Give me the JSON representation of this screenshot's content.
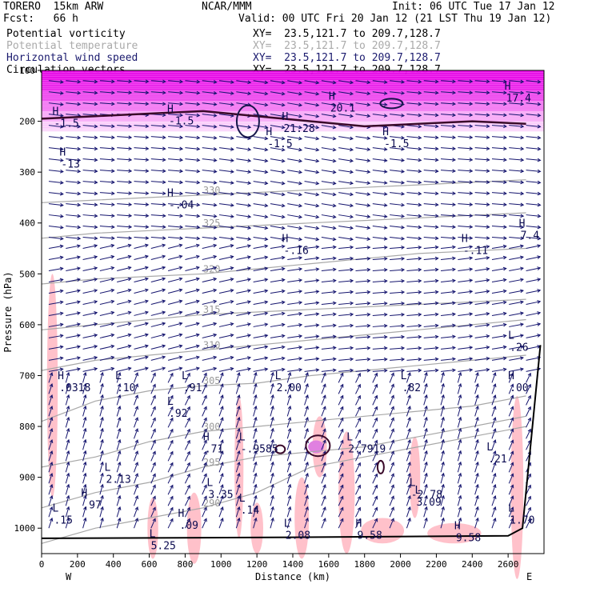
{
  "header": {
    "model": "TORERO  15km ARW",
    "center": "NCAR/MMM",
    "init": "Init: 06 UTC Tue 17 Jan 12",
    "fcst": "Fcst:   66 h",
    "valid": "Valid: 00 UTC Fri 20 Jan 12 (21 LST Thu 19 Jan 12)",
    "fields": [
      {
        "name": "Potential vorticity",
        "xy": "XY=  23.5,121.7 to 209.7,128.7"
      },
      {
        "name": "Potential temperature",
        "xy": "XY=  23.5,121.7 to 209.7,128.7"
      },
      {
        "name": "Horizontal wind speed",
        "xy": "XY=  23.5,121.7 to 209.7,128.7"
      },
      {
        "name": "Circulation vectors",
        "xy": "XY=  23.5,121.7 to 209.7,128.7"
      }
    ]
  },
  "colors": {
    "pv_fill": "#ffb6c1",
    "pv_contour": "#3a0a2a",
    "theta": "#a8a8a8",
    "wind_fill": "#e600e6",
    "vectors": "#14146e"
  },
  "chart_data": {
    "type": "cross-section",
    "xlabel": "Distance (km)",
    "ylabel": "Pressure (hPa)",
    "xlim": [
      0,
      2800
    ],
    "ylim": [
      1050,
      100
    ],
    "x_ticks": [
      0,
      200,
      400,
      600,
      800,
      1000,
      1200,
      1400,
      1600,
      1800,
      2000,
      2200,
      2400,
      2600
    ],
    "y_ticks": [
      100,
      200,
      300,
      400,
      500,
      600,
      700,
      800,
      900,
      1000
    ],
    "left_end": "W",
    "right_end": "E",
    "theta_contours": [
      {
        "label": "290",
        "points": [
          [
            0,
            1030
          ],
          [
            300,
            1000
          ],
          [
            600,
            980
          ],
          [
            900,
            960
          ],
          [
            1200,
            930
          ],
          [
            1500,
            880
          ],
          [
            1800,
            860
          ],
          [
            2100,
            840
          ],
          [
            2400,
            820
          ],
          [
            2700,
            800
          ]
        ]
      },
      {
        "label": "295",
        "points": [
          [
            0,
            960
          ],
          [
            300,
            930
          ],
          [
            600,
            910
          ],
          [
            900,
            880
          ],
          [
            1200,
            860
          ],
          [
            1500,
            850
          ],
          [
            1800,
            840
          ],
          [
            2100,
            820
          ],
          [
            2400,
            800
          ],
          [
            2700,
            780
          ]
        ]
      },
      {
        "label": "300",
        "points": [
          [
            0,
            880
          ],
          [
            300,
            860
          ],
          [
            600,
            830
          ],
          [
            900,
            810
          ],
          [
            1200,
            800
          ],
          [
            1500,
            790
          ],
          [
            1800,
            780
          ],
          [
            2100,
            770
          ],
          [
            2400,
            760
          ],
          [
            2700,
            740
          ]
        ]
      },
      {
        "label": "305",
        "points": [
          [
            0,
            790
          ],
          [
            300,
            750
          ],
          [
            600,
            730
          ],
          [
            900,
            720
          ],
          [
            1200,
            715
          ],
          [
            1500,
            700
          ],
          [
            1800,
            690
          ],
          [
            2100,
            680
          ],
          [
            2400,
            670
          ],
          [
            2700,
            660
          ]
        ]
      },
      {
        "label": "310",
        "points": [
          [
            0,
            690
          ],
          [
            300,
            670
          ],
          [
            600,
            660
          ],
          [
            900,
            650
          ],
          [
            1200,
            640
          ],
          [
            1500,
            630
          ],
          [
            1800,
            620
          ],
          [
            2100,
            610
          ],
          [
            2400,
            600
          ],
          [
            2700,
            590
          ]
        ]
      },
      {
        "label": "315",
        "points": [
          [
            0,
            610
          ],
          [
            300,
            600
          ],
          [
            600,
            590
          ],
          [
            900,
            580
          ],
          [
            1200,
            575
          ],
          [
            1500,
            570
          ],
          [
            1800,
            565
          ],
          [
            2100,
            560
          ],
          [
            2400,
            555
          ],
          [
            2700,
            550
          ]
        ]
      },
      {
        "label": "320",
        "points": [
          [
            0,
            520
          ],
          [
            300,
            510
          ],
          [
            600,
            505
          ],
          [
            900,
            500
          ],
          [
            1200,
            490
          ],
          [
            1500,
            480
          ],
          [
            1800,
            470
          ],
          [
            2100,
            460
          ],
          [
            2400,
            455
          ],
          [
            2700,
            450
          ]
        ]
      },
      {
        "label": "325",
        "points": [
          [
            0,
            430
          ],
          [
            300,
            420
          ],
          [
            600,
            415
          ],
          [
            900,
            410
          ],
          [
            1200,
            405
          ],
          [
            1500,
            400
          ],
          [
            1800,
            395
          ],
          [
            2100,
            390
          ],
          [
            2400,
            385
          ],
          [
            2700,
            380
          ]
        ]
      },
      {
        "label": "330",
        "points": [
          [
            0,
            360
          ],
          [
            300,
            355
          ],
          [
            600,
            350
          ],
          [
            900,
            345
          ],
          [
            1200,
            340
          ],
          [
            1500,
            335
          ],
          [
            1800,
            330
          ],
          [
            2100,
            325
          ],
          [
            2400,
            320
          ],
          [
            2700,
            315
          ]
        ]
      }
    ],
    "pv_contour_2pvu": [
      [
        0,
        195
      ],
      [
        300,
        190
      ],
      [
        600,
        185
      ],
      [
        900,
        180
      ],
      [
        1200,
        190
      ],
      [
        1500,
        200
      ],
      [
        1800,
        210
      ],
      [
        2100,
        205
      ],
      [
        2400,
        200
      ],
      [
        2700,
        205
      ]
    ],
    "extrema_labels": [
      {
        "type": "H",
        "value": "-1.5",
        "x": 60,
        "y": 200
      },
      {
        "type": "H",
        "value": "-1.5",
        "x": 700,
        "y": 195
      },
      {
        "type": "H",
        "value": "-1.5",
        "x": 1250,
        "y": 240
      },
      {
        "type": "H",
        "value": "-1.5",
        "x": 1900,
        "y": 240
      },
      {
        "type": "H",
        "value": "-13",
        "x": 100,
        "y": 280
      },
      {
        "type": "H",
        "value": "-.04",
        "x": 700,
        "y": 360
      },
      {
        "type": "H",
        "value": "-.16",
        "x": 1340,
        "y": 450
      },
      {
        "type": "H",
        "value": "-.11",
        "x": 2340,
        "y": 450
      },
      {
        "type": "H",
        "value": "7.4",
        "x": 2660,
        "y": 420
      },
      {
        "type": "H",
        "value": "20.1",
        "x": 1600,
        "y": 170
      },
      {
        "type": "H",
        "value": "17.4",
        "x": 2580,
        "y": 150
      },
      {
        "type": "H",
        "value": "21.28",
        "x": 1340,
        "y": 210
      },
      {
        "type": "L",
        "value": ".26",
        "x": 2600,
        "y": 640
      },
      {
        "type": "H",
        "value": ".0318",
        "x": 90,
        "y": 720
      },
      {
        "type": "L",
        "value": ".10",
        "x": 410,
        "y": 720
      },
      {
        "type": "L",
        "value": ".91",
        "x": 780,
        "y": 720
      },
      {
        "type": "L",
        "value": "2.00",
        "x": 1300,
        "y": 720
      },
      {
        "type": "L",
        "value": ".82",
        "x": 2000,
        "y": 720
      },
      {
        "type": "H",
        "value": ".00",
        "x": 2600,
        "y": 720
      },
      {
        "type": "L",
        "value": ".92",
        "x": 700,
        "y": 770
      },
      {
        "type": "H",
        "value": ".71",
        "x": 900,
        "y": 840
      },
      {
        "type": "L",
        "value": "-.9585",
        "x": 1100,
        "y": 840
      },
      {
        "type": "L",
        "value": "2.7919",
        "x": 1700,
        "y": 840
      },
      {
        "type": "L",
        "value": ".21",
        "x": 2480,
        "y": 860
      },
      {
        "type": "L",
        "value": "2.13",
        "x": 350,
        "y": 900
      },
      {
        "type": "L",
        "value": "3.35",
        "x": 920,
        "y": 930
      },
      {
        "type": "L",
        "value": "-2.78",
        "x": 2050,
        "y": 930
      },
      {
        "type": "L",
        "value": "3.09",
        "x": 2080,
        "y": 945
      },
      {
        "type": "H",
        "value": ".97",
        "x": 220,
        "y": 950
      },
      {
        "type": "L",
        "value": ".14",
        "x": 1100,
        "y": 960
      },
      {
        "type": "L",
        "value": ".15",
        "x": 60,
        "y": 980
      },
      {
        "type": "H",
        "value": ".09",
        "x": 760,
        "y": 990
      },
      {
        "type": "L",
        "value": "1.70",
        "x": 2600,
        "y": 980
      },
      {
        "type": "L",
        "value": "5.25",
        "x": 600,
        "y": 1030
      },
      {
        "type": "L",
        "value": "2.08",
        "x": 1350,
        "y": 1010
      },
      {
        "type": "H",
        "value": "9.58",
        "x": 1750,
        "y": 1010
      },
      {
        "type": "H",
        "value": "9.58",
        "x": 2300,
        "y": 1015
      }
    ]
  }
}
